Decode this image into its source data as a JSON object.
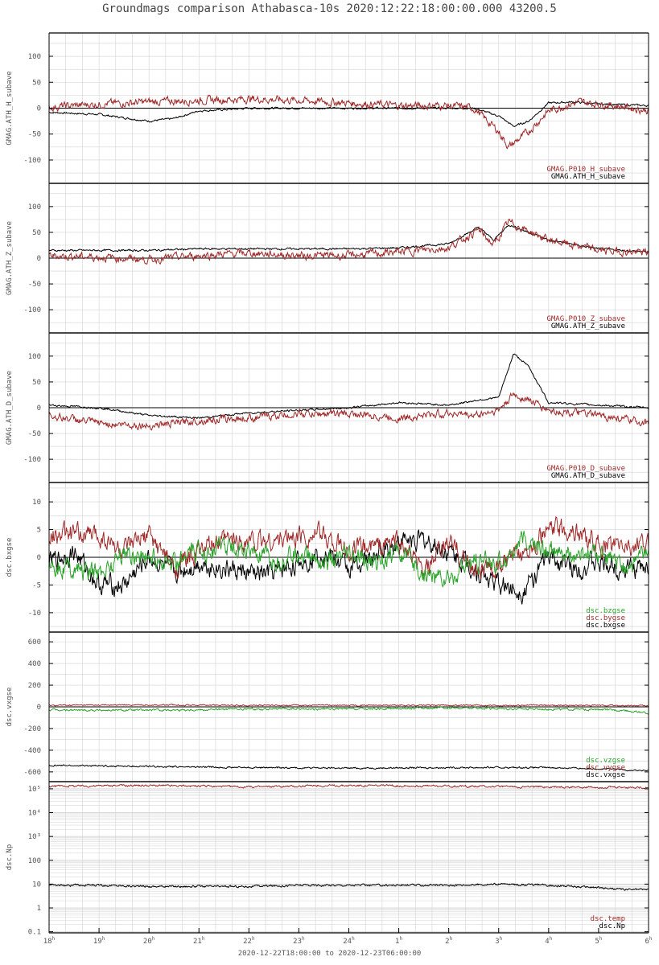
{
  "title": "Groundmags comparison Athabasca-10s 2020:12:22:18:00:00.000 43200.5",
  "x_range_label": "2020-12-22T18:00:00 to 2020-12-23T06:00:00",
  "colors": {
    "black": "#000000",
    "red": "#a02828",
    "green": "#2aa32a",
    "grid": "#d2d2d2"
  },
  "chart_data": [
    {
      "type": "line",
      "ylabel": "GMAG.ATH_H_subave",
      "ylim": [
        -145,
        145
      ],
      "yticks": [
        "-100",
        "-50",
        "0",
        "50",
        "100"
      ],
      "ytick_values": [
        -100,
        -50,
        0,
        50,
        100
      ],
      "x_ticks": [
        "18",
        "19",
        "20",
        "21",
        "22",
        "23",
        "24",
        "1",
        "2",
        "3",
        "4",
        "5",
        "6"
      ],
      "x_unit": "h",
      "series": [
        {
          "name": "GMAG.P010_H_subave",
          "color": "red",
          "x": [
            18,
            19,
            20,
            21,
            22,
            23,
            24,
            25,
            26,
            26.5,
            27,
            27.2,
            27.6,
            28,
            28.6,
            29,
            29.5,
            30
          ],
          "y": [
            2,
            8,
            12,
            15,
            18,
            15,
            10,
            5,
            5,
            0,
            -45,
            -75,
            -45,
            -5,
            12,
            8,
            3,
            -5
          ],
          "noise": 6
        },
        {
          "name": "GMAG.ATH_H_subave",
          "color": "black",
          "x": [
            18,
            19,
            20,
            20.5,
            21,
            21.5,
            22,
            23,
            24,
            25,
            26,
            26.5,
            27,
            27.3,
            27.6,
            28,
            28.5,
            29,
            30
          ],
          "y": [
            -8,
            -12,
            -25,
            -20,
            -5,
            -3,
            0,
            0,
            0,
            0,
            0,
            0,
            -15,
            -35,
            -25,
            10,
            12,
            8,
            5
          ],
          "noise": 1.5
        }
      ]
    },
    {
      "type": "line",
      "ylabel": "GMAG.ATH_Z_subave",
      "ylim": [
        -145,
        145
      ],
      "yticks": [
        "-100",
        "-50",
        "0",
        "50",
        "100"
      ],
      "ytick_values": [
        -100,
        -50,
        0,
        50,
        100
      ],
      "x_ticks": [
        "18",
        "19",
        "20",
        "21",
        "22",
        "23",
        "24",
        "1",
        "2",
        "3",
        "4",
        "5",
        "6"
      ],
      "x_unit": "h",
      "series": [
        {
          "name": "GMAG.P010_Z_subave",
          "color": "red",
          "x": [
            18,
            19,
            20,
            21,
            22,
            23,
            24,
            25,
            26,
            26.6,
            26.9,
            27.2,
            28,
            29,
            30
          ],
          "y": [
            5,
            2,
            -3,
            5,
            10,
            5,
            5,
            12,
            20,
            55,
            25,
            70,
            35,
            15,
            10
          ],
          "noise": 6
        },
        {
          "name": "GMAG.ATH_Z_subave",
          "color": "black",
          "x": [
            18,
            19,
            20,
            21,
            22,
            23,
            24,
            25,
            26,
            26.6,
            26.9,
            27.2,
            28,
            29,
            30
          ],
          "y": [
            15,
            15,
            15,
            18,
            18,
            18,
            18,
            20,
            28,
            60,
            35,
            65,
            35,
            18,
            12
          ],
          "noise": 1.5
        }
      ]
    },
    {
      "type": "line",
      "ylabel": "GMAG.ATH_D_subave",
      "ylim": [
        -145,
        145
      ],
      "yticks": [
        "-100",
        "-50",
        "0",
        "50",
        "100"
      ],
      "ytick_values": [
        -100,
        -50,
        0,
        50,
        100
      ],
      "x_ticks": [
        "18",
        "19",
        "20",
        "21",
        "22",
        "23",
        "24",
        "1",
        "2",
        "3",
        "4",
        "5",
        "6"
      ],
      "x_unit": "h",
      "series": [
        {
          "name": "GMAG.P010_D_subave",
          "color": "red",
          "x": [
            18,
            19,
            20,
            21,
            22,
            23,
            24,
            25,
            26,
            26.5,
            27,
            27.3,
            27.6,
            28,
            29,
            30
          ],
          "y": [
            -15,
            -30,
            -35,
            -25,
            -20,
            -12,
            -12,
            -20,
            -10,
            -15,
            -5,
            25,
            15,
            -5,
            -15,
            -30
          ],
          "noise": 6
        },
        {
          "name": "GMAG.ATH_D_subave",
          "color": "black",
          "x": [
            18,
            19,
            20,
            21,
            22,
            23,
            24,
            25,
            26,
            26.6,
            27,
            27.3,
            27.6,
            28,
            29,
            30
          ],
          "y": [
            5,
            0,
            -15,
            -20,
            -10,
            -5,
            0,
            10,
            5,
            15,
            20,
            105,
            80,
            10,
            5,
            0
          ],
          "noise": 1.5
        }
      ]
    },
    {
      "type": "line",
      "ylabel": "dsc.bxgse",
      "ylim": [
        -13.5,
        13.5
      ],
      "yticks": [
        "-10",
        "-5",
        "0",
        "5",
        "10"
      ],
      "ytick_values": [
        -10,
        -5,
        0,
        5,
        10
      ],
      "x_ticks": [
        "18",
        "19",
        "20",
        "21",
        "22",
        "23",
        "24",
        "1",
        "2",
        "3",
        "4",
        "5",
        "6"
      ],
      "x_unit": "h",
      "series": [
        {
          "name": "dsc.bzgse",
          "color": "green",
          "x": [
            18,
            18.5,
            19,
            19.5,
            20,
            20.5,
            21,
            21.5,
            22,
            22.5,
            23,
            23.5,
            24,
            24.5,
            25,
            25.5,
            26,
            26.5,
            27,
            27.5,
            28,
            28.5,
            29,
            29.5,
            30
          ],
          "y": [
            -1,
            -2,
            -3,
            1,
            0,
            -1,
            1,
            2,
            1,
            -1,
            1,
            -1,
            0,
            -1,
            1,
            -3,
            -4,
            -1,
            -1,
            3,
            1,
            0,
            1,
            -2,
            1
          ],
          "noise": 1.5
        },
        {
          "name": "dsc.bygse",
          "color": "red",
          "x": [
            18,
            18.5,
            19,
            19.5,
            20,
            20.5,
            21,
            21.5,
            22,
            22.5,
            23,
            23.5,
            24,
            24.5,
            25,
            25.5,
            26,
            26.5,
            27,
            27.5,
            28,
            28.5,
            29,
            29.5,
            30
          ],
          "y": [
            4,
            4,
            4,
            1,
            4,
            -2,
            1,
            3,
            3,
            3,
            4,
            4,
            1,
            2,
            3,
            -3,
            3,
            -2,
            -2,
            1,
            5,
            5,
            2,
            2,
            2
          ],
          "noise": 1.5
        },
        {
          "name": "dsc.bxgse",
          "color": "black",
          "x": [
            18,
            18.5,
            19,
            19.5,
            20,
            20.5,
            21,
            21.5,
            22,
            22.5,
            23,
            23.5,
            24,
            24.5,
            25,
            25.5,
            26,
            26.5,
            27,
            27.5,
            28,
            28.5,
            29,
            29.5,
            30
          ],
          "y": [
            -1,
            1,
            -5,
            -5,
            0,
            -3,
            -1,
            -2,
            -3,
            -3,
            -1,
            1,
            -2,
            0,
            3,
            3,
            1,
            -2,
            -5,
            -6,
            0,
            -2,
            -1,
            -2,
            -2
          ],
          "noise": 1.5
        }
      ]
    },
    {
      "type": "line",
      "ylabel": "dsc.vxgse",
      "ylim": [
        -690,
        690
      ],
      "yticks": [
        "-600",
        "-400",
        "-200",
        "0",
        "200",
        "400",
        "600"
      ],
      "ytick_values": [
        -600,
        -400,
        -200,
        0,
        200,
        400,
        600
      ],
      "x_ticks": [
        "18",
        "19",
        "20",
        "21",
        "22",
        "23",
        "24",
        "1",
        "2",
        "3",
        "4",
        "5",
        "6"
      ],
      "x_unit": "h",
      "series": [
        {
          "name": "dsc.vzgse",
          "color": "green",
          "x": [
            18,
            20,
            22,
            24,
            26,
            28,
            29.5,
            30
          ],
          "y": [
            -30,
            -30,
            -20,
            -20,
            -10,
            -20,
            -30,
            -60
          ],
          "noise": 8
        },
        {
          "name": "dsc.vygse",
          "color": "red",
          "x": [
            18,
            20,
            22,
            24,
            26,
            28,
            30
          ],
          "y": [
            15,
            18,
            15,
            15,
            15,
            15,
            10
          ],
          "noise": 5
        },
        {
          "name": "dsc.vxgse",
          "color": "black",
          "x": [
            18,
            20,
            22,
            24,
            26,
            28,
            29,
            30
          ],
          "y": [
            -540,
            -550,
            -560,
            -565,
            -560,
            -560,
            -570,
            -590
          ],
          "noise": 6
        }
      ]
    },
    {
      "type": "line",
      "ylabel": "dsc.Np",
      "yscale": "log",
      "ylim": [
        0.09,
        200000
      ],
      "yticks": [
        "0.1",
        "1",
        "10",
        "100",
        "10³",
        "10⁴",
        "10⁵"
      ],
      "ytick_values": [
        0.1,
        1,
        10,
        100,
        1000,
        10000,
        100000
      ],
      "x_ticks": [
        "18",
        "19",
        "20",
        "21",
        "22",
        "23",
        "24",
        "1",
        "2",
        "3",
        "4",
        "5",
        "6"
      ],
      "x_unit": "h",
      "series": [
        {
          "name": "dsc.temp",
          "color": "red",
          "x": [
            18,
            20,
            22,
            24,
            26,
            28,
            30
          ],
          "y": [
            130000,
            140000,
            120000,
            140000,
            130000,
            120000,
            115000
          ],
          "noise_frac": 0.08
        },
        {
          "name": "dsc.Np",
          "color": "black",
          "x": [
            18,
            19,
            20,
            21,
            22,
            23,
            24,
            25,
            26,
            27,
            28,
            29,
            29.5,
            30
          ],
          "y": [
            9,
            9,
            8,
            8,
            8,
            9,
            9,
            9,
            9,
            10,
            9,
            7,
            6,
            6
          ],
          "noise_frac": 0.08
        }
      ]
    }
  ]
}
